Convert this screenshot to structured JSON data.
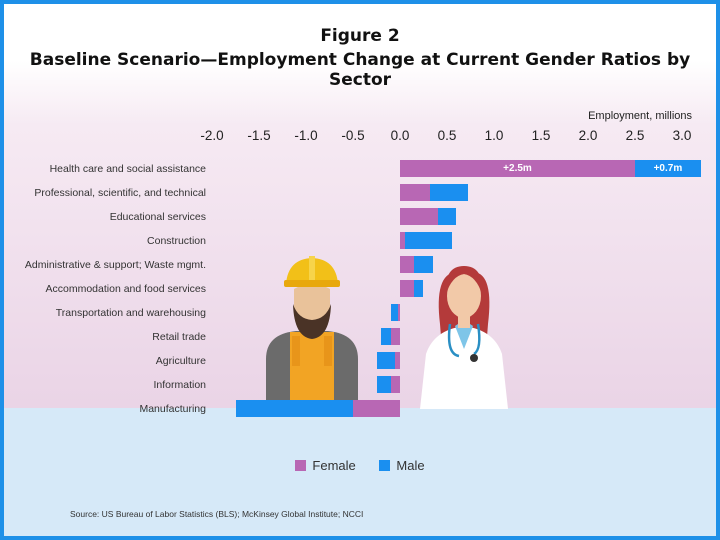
{
  "title": "Figure 2",
  "subtitle": "Baseline Scenario—Employment Change at Current Gender Ratios by Sector",
  "source": "Source: US Bureau of Labor Statistics (BLS); McKinsey Global Institute; NCCI",
  "colors": {
    "female": "#b867b4",
    "male": "#1a8ff0",
    "frame": "#1e90e8"
  },
  "chart_data": {
    "type": "bar",
    "orientation": "horizontal",
    "stacked": true,
    "xlabel": "Employment, millions",
    "xlim": [
      -2.0,
      3.0
    ],
    "ticks": [
      "-2.0",
      "-1.5",
      "-1.0",
      "-0.5",
      "0.0",
      "0.5",
      "1.0",
      "1.5",
      "2.0",
      "2.5",
      "3.0"
    ],
    "categories": [
      "Health care and social assistance",
      "Professional, scientific, and technical",
      "Educational services",
      "Construction",
      "Administrative & support; Waste mgmt.",
      "Accommodation and food services",
      "Transportation and warehousing",
      "Retail trade",
      "Agriculture",
      "Information",
      "Manufacturing"
    ],
    "series": [
      {
        "name": "Female",
        "values": [
          2.5,
          0.32,
          0.4,
          0.05,
          0.15,
          0.15,
          -0.02,
          -0.1,
          -0.05,
          -0.1,
          -0.5
        ]
      },
      {
        "name": "Male",
        "values": [
          0.7,
          0.4,
          0.2,
          0.5,
          0.2,
          0.1,
          -0.08,
          -0.1,
          -0.2,
          -0.15,
          -1.25
        ]
      }
    ],
    "data_labels": [
      {
        "category": "Health care and social assistance",
        "series": "Female",
        "text": "+2.5m"
      },
      {
        "category": "Health care and social assistance",
        "series": "Male",
        "text": "+0.7m"
      }
    ],
    "legend": [
      "Female",
      "Male"
    ],
    "legend_position": "bottom"
  }
}
